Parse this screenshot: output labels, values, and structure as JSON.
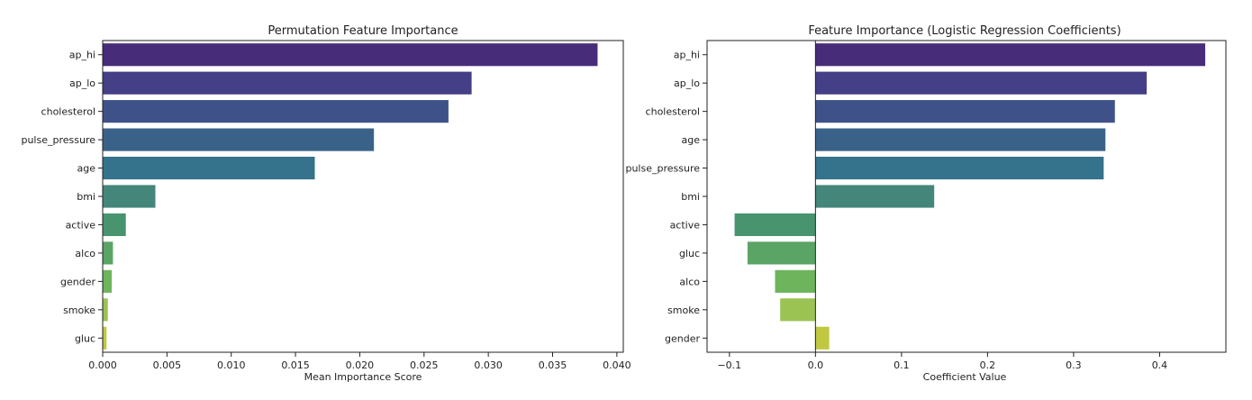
{
  "chart_data": [
    {
      "type": "bar",
      "orientation": "horizontal",
      "title": "Permutation Feature Importance",
      "xlabel": "Mean Importance Score",
      "ylabel": "",
      "categories": [
        "ap_hi",
        "ap_lo",
        "cholesterol",
        "pulse_pressure",
        "age",
        "bmi",
        "active",
        "alco",
        "gender",
        "smoke",
        "gluc"
      ],
      "values": [
        0.0385,
        0.0287,
        0.0269,
        0.0211,
        0.0165,
        0.0041,
        0.0018,
        0.0008,
        0.0007,
        0.0004,
        0.0003
      ],
      "xlim": [
        0,
        0.0405
      ],
      "xticks": [
        0,
        0.005,
        0.01,
        0.015,
        0.02,
        0.025,
        0.03,
        0.035,
        0.04
      ],
      "xtick_labels": [
        "0.000",
        "0.005",
        "0.010",
        "0.015",
        "0.020",
        "0.025",
        "0.030",
        "0.035",
        "0.040"
      ],
      "palette": "viridis",
      "colors": [
        "#472c7a",
        "#443f86",
        "#3f5189",
        "#3a6289",
        "#35728b",
        "#44867a",
        "#47946f",
        "#5aa565",
        "#6db45d",
        "#9ac353",
        "#c0c841"
      ],
      "grid": false,
      "legend": "none"
    },
    {
      "type": "bar",
      "orientation": "horizontal",
      "title": "Feature Importance (Logistic Regression Coefficients)",
      "xlabel": "Coefficient Value",
      "ylabel": "",
      "categories": [
        "ap_hi",
        "ap_lo",
        "cholesterol",
        "age",
        "pulse_pressure",
        "bmi",
        "active",
        "gluc",
        "alco",
        "smoke",
        "gender"
      ],
      "values": [
        0.453,
        0.385,
        0.348,
        0.337,
        0.335,
        0.138,
        -0.094,
        -0.079,
        -0.047,
        -0.041,
        0.016
      ],
      "xlim": [
        -0.126,
        0.477
      ],
      "xticks": [
        -0.1,
        0,
        0.1,
        0.2,
        0.3,
        0.4
      ],
      "xtick_labels": [
        "−0.1",
        "0.0",
        "0.1",
        "0.2",
        "0.3",
        "0.4"
      ],
      "palette": "viridis",
      "colors": [
        "#472c7a",
        "#443f86",
        "#3f5189",
        "#3a6289",
        "#35728b",
        "#44867a",
        "#47946f",
        "#5aa565",
        "#6db45d",
        "#9ac353",
        "#c0c841"
      ],
      "grid": false,
      "legend": "none"
    }
  ]
}
